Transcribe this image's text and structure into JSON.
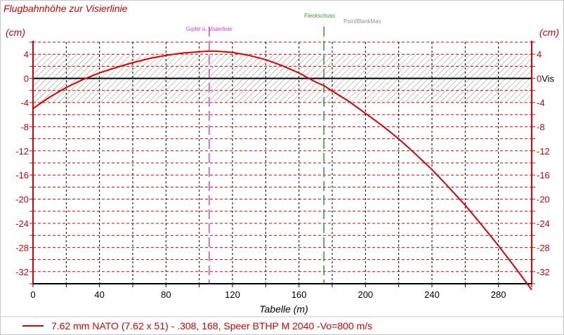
{
  "chart_data": {
    "type": "line",
    "title": "Flugbahnhöhe zur Visierlinie",
    "ylabel_left": "(cm)",
    "ylabel_right": "(cm)",
    "xlabel": "Tabelle (m)",
    "xlim": [
      0,
      300
    ],
    "ylim": [
      -34,
      6
    ],
    "x_ticks": [
      0,
      40,
      80,
      120,
      160,
      200,
      240,
      280
    ],
    "x_minor_step": 20,
    "y_ticks": [
      4,
      0,
      -4,
      -8,
      -12,
      -16,
      -20,
      -24,
      -28,
      -32
    ],
    "y_ticks_right": [
      "4",
      "0Vis",
      "-4",
      "-8",
      "-12",
      "-16",
      "-20",
      "-24",
      "-28",
      "-32"
    ],
    "y_minor_step": 2,
    "grid": true,
    "hatch_band": [
      -4,
      4
    ],
    "series": [
      {
        "name": "7.62 mm NATO (7.62 x 51) - .308, 168, Speer BTHP M 2040 -Vo=800 m/s",
        "color": "#e00000",
        "x": [
          0,
          10,
          20,
          30,
          40,
          50,
          60,
          70,
          80,
          90,
          100,
          105,
          110,
          120,
          130,
          140,
          150,
          160,
          170,
          175,
          180,
          190,
          200,
          210,
          220,
          230,
          240,
          250,
          260,
          270,
          280,
          290,
          300
        ],
        "y": [
          -5.0,
          -3.1,
          -1.5,
          -0.2,
          0.9,
          1.8,
          2.6,
          3.3,
          3.8,
          4.2,
          4.4,
          4.5,
          4.5,
          4.3,
          3.8,
          3.1,
          2.1,
          0.9,
          -0.6,
          -1.2,
          -2.1,
          -3.8,
          -5.8,
          -7.8,
          -10.0,
          -12.5,
          -15.1,
          -18.0,
          -21.0,
          -24.3,
          -27.7,
          -31.3,
          -35.0
        ]
      }
    ],
    "markers": [
      {
        "label": "Gipfel ü. Visierlinie",
        "x": 106,
        "color": "#e040e0"
      },
      {
        "label": "Fleckschuss",
        "x": 175,
        "color": "#2e9a2e"
      },
      {
        "label": "PointBlankMax",
        "color": "#909090"
      }
    ]
  }
}
